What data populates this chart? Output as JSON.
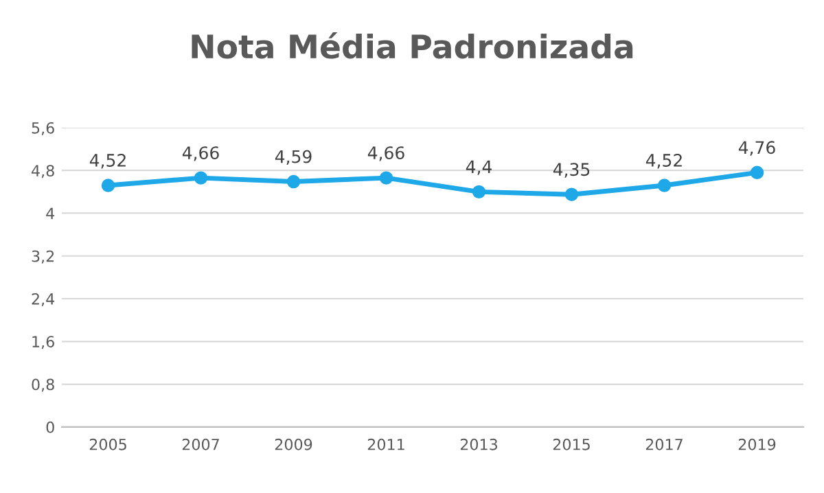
{
  "chart_data": {
    "type": "line",
    "title": "Nota Média Padronizada",
    "categories": [
      "2005",
      "2007",
      "2009",
      "2011",
      "2013",
      "2015",
      "2017",
      "2019"
    ],
    "series": [
      {
        "color": "#1fa8e8",
        "values": [
          4.52,
          4.66,
          4.59,
          4.66,
          4.4,
          4.35,
          4.52,
          4.76
        ],
        "value_labels": [
          "4,52",
          "4,66",
          "4,59",
          "4,66",
          "4,4",
          "4,35",
          "4,52",
          "4,76"
        ]
      }
    ],
    "ylim": [
      0,
      5.6
    ],
    "yticks": [
      0,
      {
        "value": 0.8,
        "label": "0,8"
      },
      {
        "value": 1.6,
        "label": "1,6"
      },
      {
        "value": 2.4,
        "label": "2,4"
      },
      {
        "value": 3.2,
        "label": "3,2"
      },
      4,
      {
        "value": 4.8,
        "label": "4,8"
      },
      {
        "value": 5.6,
        "label": "5,6"
      }
    ],
    "grid": "y",
    "marker": "circle",
    "line_style": "solid",
    "legend": false
  }
}
